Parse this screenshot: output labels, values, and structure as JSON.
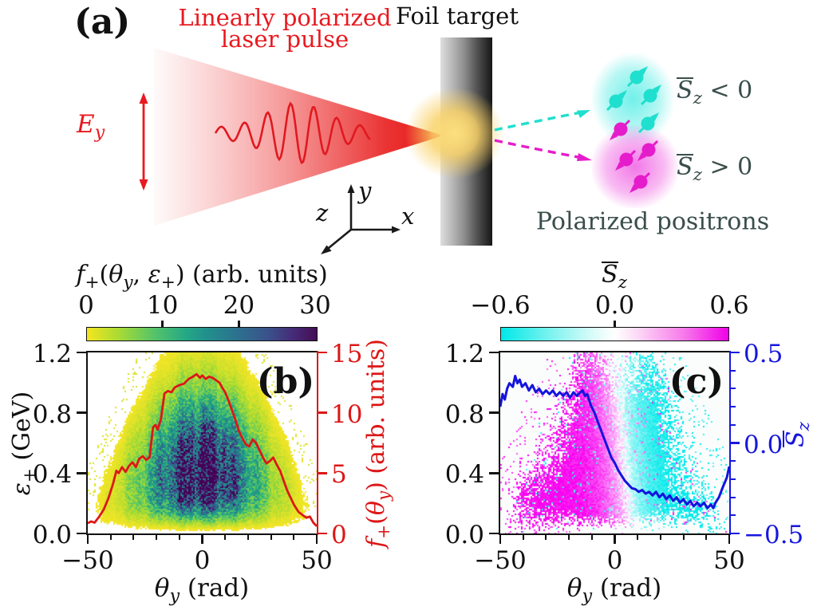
{
  "panel_a": {
    "tag": "(a)",
    "laser_label_line1": "Linearly polarized",
    "laser_label_line2": "laser pulse",
    "foil_label": "Foil target",
    "ey_label_html": "<i>E</i><sub><i>y</i></sub>",
    "axis_labels": {
      "x": "x",
      "y": "y",
      "z": "z"
    },
    "sz_neg_html": "<span class=\"ov\"><i>S</i></span><sub><i>z</i></sub> &lt; 0",
    "sz_pos_html": "<span class=\"ov\"><i>S</i></span><sub><i>z</i></sub> &gt; 0",
    "positrons_label": "Polarized positrons",
    "colors": {
      "laser": "#e8191f",
      "cyan_beam": "#1fdfce",
      "magenta_beam": "#e51ccb",
      "foil_dark": "#161616",
      "glow": "#f9d062",
      "label_slate": "#3a4e4c"
    },
    "spins_cyan": [
      [
        798,
        97
      ],
      [
        772,
        127
      ],
      [
        815,
        120
      ],
      [
        812,
        155
      ]
    ],
    "spins_magenta": [
      [
        778,
        162
      ],
      [
        813,
        188
      ],
      [
        785,
        200
      ],
      [
        803,
        228
      ]
    ]
  },
  "chart_data": [
    {
      "id": "b",
      "type": "heatmap+line",
      "panel_tag": "(b)",
      "x_axis": {
        "label_html": "<i>θ</i><sub><i>y</i></sub> (rad)",
        "lim": [
          -50,
          50
        ],
        "major": [
          -50,
          0,
          50
        ],
        "major_labels": [
          "−50",
          "0",
          "50"
        ],
        "minor_step": 10
      },
      "y_axis": {
        "label_html": "<i>ε</i><sub>+</sub> (GeV)",
        "lim": [
          0,
          1.2
        ],
        "major": [
          0,
          0.4,
          0.8,
          1.2
        ],
        "major_labels": [
          "0.0",
          "0.4",
          "0.8",
          "1.2"
        ]
      },
      "y2_axis": {
        "label_html": "<i>f</i><sub>+</sub>(<i>θ</i><sub><i>y</i></sub>) (arb. units)",
        "lim": [
          0,
          15
        ],
        "major": [
          0,
          5,
          10,
          15
        ],
        "major_labels": [
          "0",
          "5",
          "10",
          "15"
        ],
        "color": "#dd1717"
      },
      "colorbar": {
        "title_html": "<i>f</i><sub>+</sub>(<i>θ</i><sub><i>y</i></sub>, <i>ε</i><sub>+</sub>) (arb. units)",
        "lim": [
          0,
          30
        ],
        "major": [
          0,
          10,
          20,
          30
        ],
        "labels": [
          "0",
          "10",
          "20",
          "30"
        ],
        "colormap": "viridis_reversed"
      },
      "line_series": {
        "name": "f+(theta_y)",
        "color": "#dd1717",
        "x": [
          -50,
          -48.5,
          -47,
          -45,
          -43,
          -41,
          -39,
          -37.5,
          -36.5,
          -35,
          -33.5,
          -32,
          -30.5,
          -29,
          -27.5,
          -26,
          -24.5,
          -23,
          -21.5,
          -20.5,
          -19.5,
          -18,
          -16.5,
          -15,
          -13.5,
          -12,
          -10,
          -8,
          -6,
          -4,
          -2.5,
          -1,
          0,
          1.5,
          3,
          4.5,
          6,
          7.5,
          9,
          10,
          11.5,
          13,
          14.5,
          16,
          17.5,
          19,
          20.5,
          22,
          23.5,
          25,
          26.5,
          28,
          29.5,
          31,
          32.5,
          34,
          35.5,
          37,
          38.5,
          40,
          42,
          44,
          45.5,
          47,
          48.5,
          50
        ],
        "y": [
          0.85,
          1.0,
          0.9,
          1.4,
          2.0,
          2.9,
          4.1,
          5.2,
          5.0,
          5.5,
          5.1,
          5.6,
          5.9,
          5.5,
          6.2,
          6.4,
          6.1,
          6.3,
          8.8,
          9.0,
          8.6,
          9.5,
          11.6,
          11.8,
          11.7,
          12.1,
          12.3,
          12.4,
          12.8,
          13.0,
          13.2,
          12.9,
          13.1,
          12.8,
          13.0,
          12.9,
          12.7,
          12.5,
          12.0,
          11.7,
          11.0,
          10.2,
          9.4,
          8.5,
          7.9,
          7.4,
          7.2,
          7.8,
          7.5,
          6.9,
          6.3,
          5.8,
          6.0,
          6.3,
          5.7,
          5.2,
          4.4,
          3.6,
          3.0,
          2.4,
          1.8,
          1.5,
          1.3,
          1.4,
          0.9,
          0.6
        ]
      },
      "heatmap": {
        "value_range": [
          0,
          30
        ],
        "colormap": "viridis_reversed",
        "model": {
          "peak_value": 30,
          "core": {
            "theta": 0,
            "eps": 0.4
          },
          "envelope_halfwidth": {
            "w0": 51,
            "w1": 24,
            "pow": 1.3
          }
        }
      }
    },
    {
      "id": "c",
      "type": "heatmap+line",
      "panel_tag": "(c)",
      "x_axis": {
        "label_html": "<i>θ</i><sub><i>y</i></sub> (rad)",
        "lim": [
          -50,
          50
        ],
        "major": [
          -50,
          0,
          50
        ],
        "major_labels": [
          "−50",
          "0",
          "50"
        ],
        "minor_step": 10
      },
      "y_axis": {
        "label_html": "",
        "lim": [
          0,
          1.2
        ],
        "major": [
          0,
          0.4,
          0.8,
          1.2
        ],
        "major_labels": [
          "0.0",
          "0.4",
          "0.8",
          "1.2"
        ]
      },
      "y2_axis": {
        "label_html": "<span class=\"ov\"><i>S</i></span><sub><i>z</i></sub>",
        "lim": [
          -0.5,
          0.5
        ],
        "major": [
          0.5,
          0.0,
          -0.5
        ],
        "major_labels": [
          "0.5",
          "0.0",
          "−0.5"
        ],
        "minor_step": 0.1,
        "color": "#1717dd"
      },
      "colorbar": {
        "title_html": "<span class=\"ov\"><i>S</i></span><sub><i>z</i></sub>",
        "lim": [
          -0.6,
          0.6
        ],
        "major": [
          -0.6,
          0.0,
          0.6
        ],
        "labels": [
          "−0.6",
          "0.0",
          "0.6"
        ],
        "colormap": "cyan_white_magenta"
      },
      "line_series": {
        "name": "mean S_z(theta_y)",
        "color": "#1414dd",
        "x": [
          -50,
          -49,
          -48,
          -47,
          -46,
          -44.5,
          -43.5,
          -42.5,
          -41.5,
          -40.5,
          -39,
          -37.5,
          -36,
          -34.5,
          -33,
          -31.5,
          -30,
          -28.5,
          -27,
          -25.5,
          -24,
          -22.5,
          -21,
          -19.5,
          -18,
          -16.5,
          -15,
          -14,
          -13,
          -12,
          -10.5,
          -9,
          -7.5,
          -6,
          -4.5,
          -3,
          -1.5,
          0,
          1.5,
          3,
          4.5,
          6,
          7.5,
          9,
          10.5,
          12,
          13.5,
          15,
          16.5,
          18,
          19.5,
          21,
          22.5,
          24,
          25.5,
          27,
          28.5,
          30,
          31.5,
          33,
          34.5,
          36,
          37.5,
          39,
          40.5,
          42,
          43,
          44,
          45.5,
          47,
          48,
          49,
          50
        ],
        "y": [
          0.2,
          0.27,
          0.24,
          0.3,
          0.33,
          0.31,
          0.37,
          0.33,
          0.35,
          0.31,
          0.33,
          0.29,
          0.32,
          0.28,
          0.3,
          0.27,
          0.29,
          0.27,
          0.29,
          0.26,
          0.28,
          0.26,
          0.28,
          0.25,
          0.28,
          0.26,
          0.28,
          0.29,
          0.26,
          0.27,
          0.21,
          0.17,
          0.12,
          0.07,
          0.02,
          -0.03,
          -0.08,
          -0.11,
          -0.15,
          -0.18,
          -0.21,
          -0.23,
          -0.25,
          -0.255,
          -0.27,
          -0.26,
          -0.28,
          -0.27,
          -0.29,
          -0.27,
          -0.3,
          -0.28,
          -0.31,
          -0.29,
          -0.32,
          -0.3,
          -0.33,
          -0.31,
          -0.34,
          -0.32,
          -0.35,
          -0.33,
          -0.35,
          -0.33,
          -0.36,
          -0.34,
          -0.36,
          -0.33,
          -0.3,
          -0.25,
          -0.22,
          -0.19,
          -0.13
        ]
      },
      "heatmap": {
        "value_range": [
          -0.6,
          0.6
        ],
        "colormap": "cyan_white_magenta",
        "model": {
          "s_max": 0.62,
          "zero_line_theta": {
            "at_eps0": 7,
            "slope_per_eps": -6
          },
          "transition_width": 14
        }
      }
    }
  ]
}
